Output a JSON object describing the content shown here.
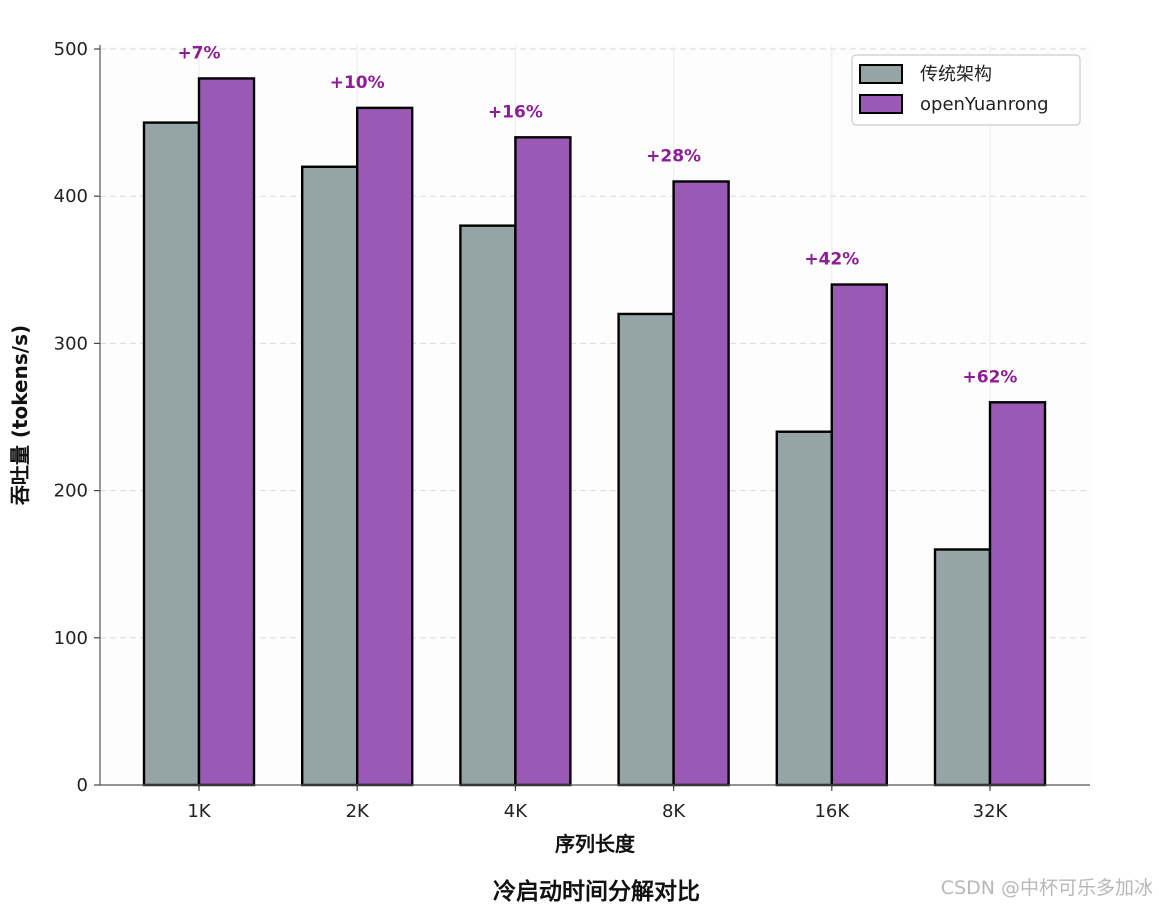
{
  "chart_data": {
    "type": "bar",
    "categories": [
      "1K",
      "2K",
      "4K",
      "8K",
      "16K",
      "32K"
    ],
    "series": [
      {
        "name": "传统架构",
        "values": [
          450,
          420,
          380,
          320,
          240,
          160
        ],
        "color": "#95a5a6"
      },
      {
        "name": "openYuanrong",
        "values": [
          480,
          460,
          440,
          410,
          340,
          260
        ],
        "color": "#9b59b6"
      }
    ],
    "annotations": [
      "+7%",
      "+10%",
      "+16%",
      "+28%",
      "+42%",
      "+62%"
    ],
    "annotation_color": "#8e1d96",
    "xlabel": "序列长度",
    "ylabel": "吞吐量 (tokens/s)",
    "ylim": [
      0,
      500
    ],
    "yticks": [
      0,
      100,
      200,
      300,
      400,
      500
    ],
    "grid": true,
    "legend_position": "top-right"
  },
  "caption": "冷启动时间分解对比",
  "watermark": "CSDN @中杯可乐多加冰"
}
